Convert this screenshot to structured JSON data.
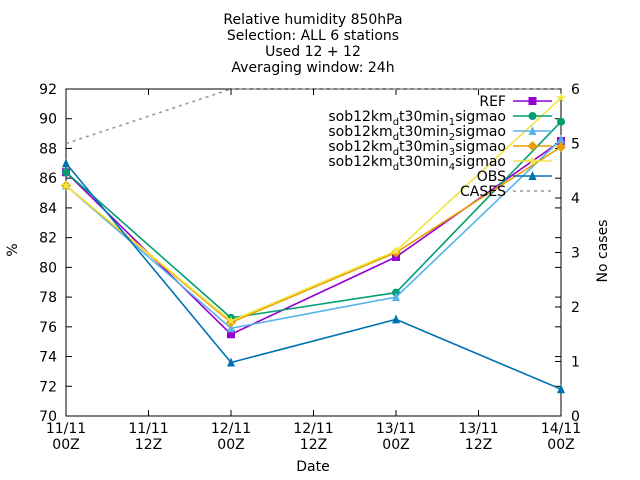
{
  "chart_data": {
    "type": "line",
    "title_lines": [
      "Relative humidity 850hPa",
      "Selection: ALL      6 stations",
      "Used 12 + 12",
      "Averaging window: 24h"
    ],
    "xlabel": "Date",
    "ylabel": "%",
    "y2label": "No cases",
    "x": [
      0,
      12,
      24,
      36,
      48,
      60,
      72
    ],
    "xticks": [
      [
        "11/11",
        "00Z"
      ],
      [
        "11/11",
        "12Z"
      ],
      [
        "12/11",
        "00Z"
      ],
      [
        "12/11",
        "12Z"
      ],
      [
        "13/11",
        "00Z"
      ],
      [
        "13/11",
        "12Z"
      ],
      [
        "14/11",
        "00Z"
      ]
    ],
    "xlim": [
      0,
      72
    ],
    "ylim": [
      70,
      92
    ],
    "yticks": [
      70,
      72,
      74,
      76,
      78,
      80,
      82,
      84,
      86,
      88,
      90,
      92
    ],
    "y2lim": [
      0,
      6
    ],
    "y2ticks": [
      0,
      1,
      2,
      3,
      4,
      5,
      6
    ],
    "grid": false,
    "legend_position": "top-right",
    "series": [
      {
        "name": "REF",
        "label_parts": [
          "REF"
        ],
        "color": "#9400d3",
        "marker": "square",
        "axis": "y1",
        "x": [
          0,
          24,
          48,
          72
        ],
        "values": [
          86.4,
          75.5,
          80.7,
          88.5
        ]
      },
      {
        "name": "sob12km_d t30min_1 sigmao",
        "label_parts": [
          "sob12km",
          "d",
          "t30min",
          "1",
          "sigmao"
        ],
        "color": "#009e73",
        "marker": "circle",
        "axis": "y1",
        "x": [
          0,
          24,
          48,
          72
        ],
        "values": [
          86.4,
          76.6,
          78.3,
          89.8
        ]
      },
      {
        "name": "sob12km_d t30min_2 sigmao",
        "label_parts": [
          "sob12km",
          "d",
          "t30min",
          "2",
          "sigmao"
        ],
        "color": "#56b4e9",
        "marker": "triangle",
        "axis": "y1",
        "x": [
          0,
          24,
          48,
          72
        ],
        "values": [
          85.5,
          75.9,
          78.0,
          88.6
        ]
      },
      {
        "name": "sob12km_d t30min_3 sigmao",
        "label_parts": [
          "sob12km",
          "d",
          "t30min",
          "3",
          "sigmao"
        ],
        "color": "#e69f00",
        "marker": "diamond",
        "axis": "y1",
        "x": [
          0,
          24,
          48,
          72
        ],
        "values": [
          85.5,
          76.3,
          81.0,
          88.1
        ]
      },
      {
        "name": "sob12km_d t30min_4 sigmao",
        "label_parts": [
          "sob12km",
          "d",
          "t30min",
          "4",
          "sigmao"
        ],
        "color": "#f0e442",
        "marker": "star",
        "axis": "y1",
        "x": [
          0,
          24,
          48,
          72
        ],
        "values": [
          85.5,
          76.4,
          81.1,
          91.4
        ]
      },
      {
        "name": "OBS",
        "label_parts": [
          "OBS"
        ],
        "color": "#0072b2",
        "marker": "triangle",
        "axis": "y1",
        "x": [
          0,
          24,
          48,
          72
        ],
        "values": [
          87.0,
          73.6,
          76.5,
          71.8
        ]
      },
      {
        "name": "CASES",
        "label_parts": [
          "CASES"
        ],
        "color": "#999999",
        "marker": "none",
        "dashed": true,
        "axis": "y2",
        "x": [
          0,
          24,
          48,
          72
        ],
        "values": [
          5,
          6,
          6,
          6
        ]
      }
    ]
  }
}
